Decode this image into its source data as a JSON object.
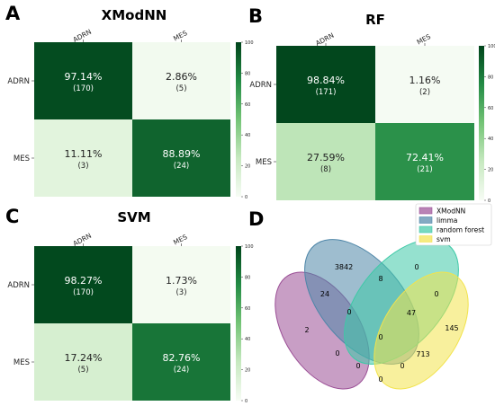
{
  "panels": {
    "A": {
      "letter": "A",
      "title": "XModNN"
    },
    "B": {
      "letter": "B",
      "title": "RF"
    },
    "C": {
      "letter": "C",
      "title": "SVM"
    },
    "D": {
      "letter": "D"
    }
  },
  "chart_data": [
    {
      "type": "heatmap",
      "panel": "A",
      "title": "XModNN",
      "columns": [
        "ADRN",
        "MES"
      ],
      "rows": [
        "ADRN",
        "MES"
      ],
      "percent_labels": [
        [
          "97.14%",
          "2.86%"
        ],
        [
          "11.11%",
          "88.89%"
        ]
      ],
      "count_labels": [
        [
          "(170)",
          "(5)"
        ],
        [
          "(3)",
          "(24)"
        ]
      ],
      "values": [
        [
          97.14,
          2.86
        ],
        [
          11.11,
          88.89
        ]
      ],
      "colorbar": {
        "range": [
          0,
          100
        ],
        "ticks": [
          "0",
          "20",
          "40",
          "60",
          "80",
          "100"
        ]
      }
    },
    {
      "type": "heatmap",
      "panel": "B",
      "title": "RF",
      "columns": [
        "ADRN",
        "MES"
      ],
      "rows": [
        "ADRN",
        "MES"
      ],
      "percent_labels": [
        [
          "98.84%",
          "1.16%"
        ],
        [
          "27.59%",
          "72.41%"
        ]
      ],
      "count_labels": [
        [
          "(171)",
          "(2)"
        ],
        [
          "(8)",
          "(21)"
        ]
      ],
      "values": [
        [
          98.84,
          1.16
        ],
        [
          27.59,
          72.41
        ]
      ],
      "colorbar": {
        "range": [
          0,
          100
        ],
        "ticks": [
          "0",
          "20",
          "40",
          "60",
          "80",
          "100"
        ]
      }
    },
    {
      "type": "heatmap",
      "panel": "C",
      "title": "SVM",
      "columns": [
        "ADRN",
        "MES"
      ],
      "rows": [
        "ADRN",
        "MES"
      ],
      "percent_labels": [
        [
          "98.27%",
          "1.73%"
        ],
        [
          "17.24%",
          "82.76%"
        ]
      ],
      "count_labels": [
        [
          "(170)",
          "(3)"
        ],
        [
          "(5)",
          "(24)"
        ]
      ],
      "values": [
        [
          98.27,
          1.73
        ],
        [
          17.24,
          82.76
        ]
      ],
      "colorbar": {
        "range": [
          0,
          100
        ],
        "ticks": [
          "0",
          "20",
          "40",
          "60",
          "80",
          "100"
        ]
      }
    },
    {
      "type": "venn",
      "panel": "D",
      "sets": [
        {
          "name": "XModNN",
          "color": "#9b4f96"
        },
        {
          "name": "limma",
          "color": "#4e86a8"
        },
        {
          "name": "random forest",
          "color": "#3ec9a7"
        },
        {
          "name": "svm",
          "color": "#f2e34c"
        }
      ],
      "regions": [
        {
          "label": "XModNN only",
          "value": 2
        },
        {
          "label": "limma only",
          "value": 3842
        },
        {
          "label": "random forest only",
          "value": 0
        },
        {
          "label": "svm only",
          "value": 145
        },
        {
          "label": "XModNN & limma",
          "value": 24
        },
        {
          "label": "limma & random forest",
          "value": 8
        },
        {
          "label": "random forest & svm",
          "value": 0
        },
        {
          "label": "limma, random forest & svm",
          "value": 47
        },
        {
          "label": "XModNN, limma & random forest",
          "value": 0
        },
        {
          "label": "all four",
          "value": 0
        },
        {
          "label": "limma & svm",
          "value": 713
        },
        {
          "label": "XModNN & random forest",
          "value": 0
        },
        {
          "label": "XModNN, limma & svm",
          "value": 0
        },
        {
          "label": "XModNN, random forest & svm",
          "value": 0
        },
        {
          "label": "XModNN & svm",
          "value": 0
        }
      ]
    }
  ]
}
